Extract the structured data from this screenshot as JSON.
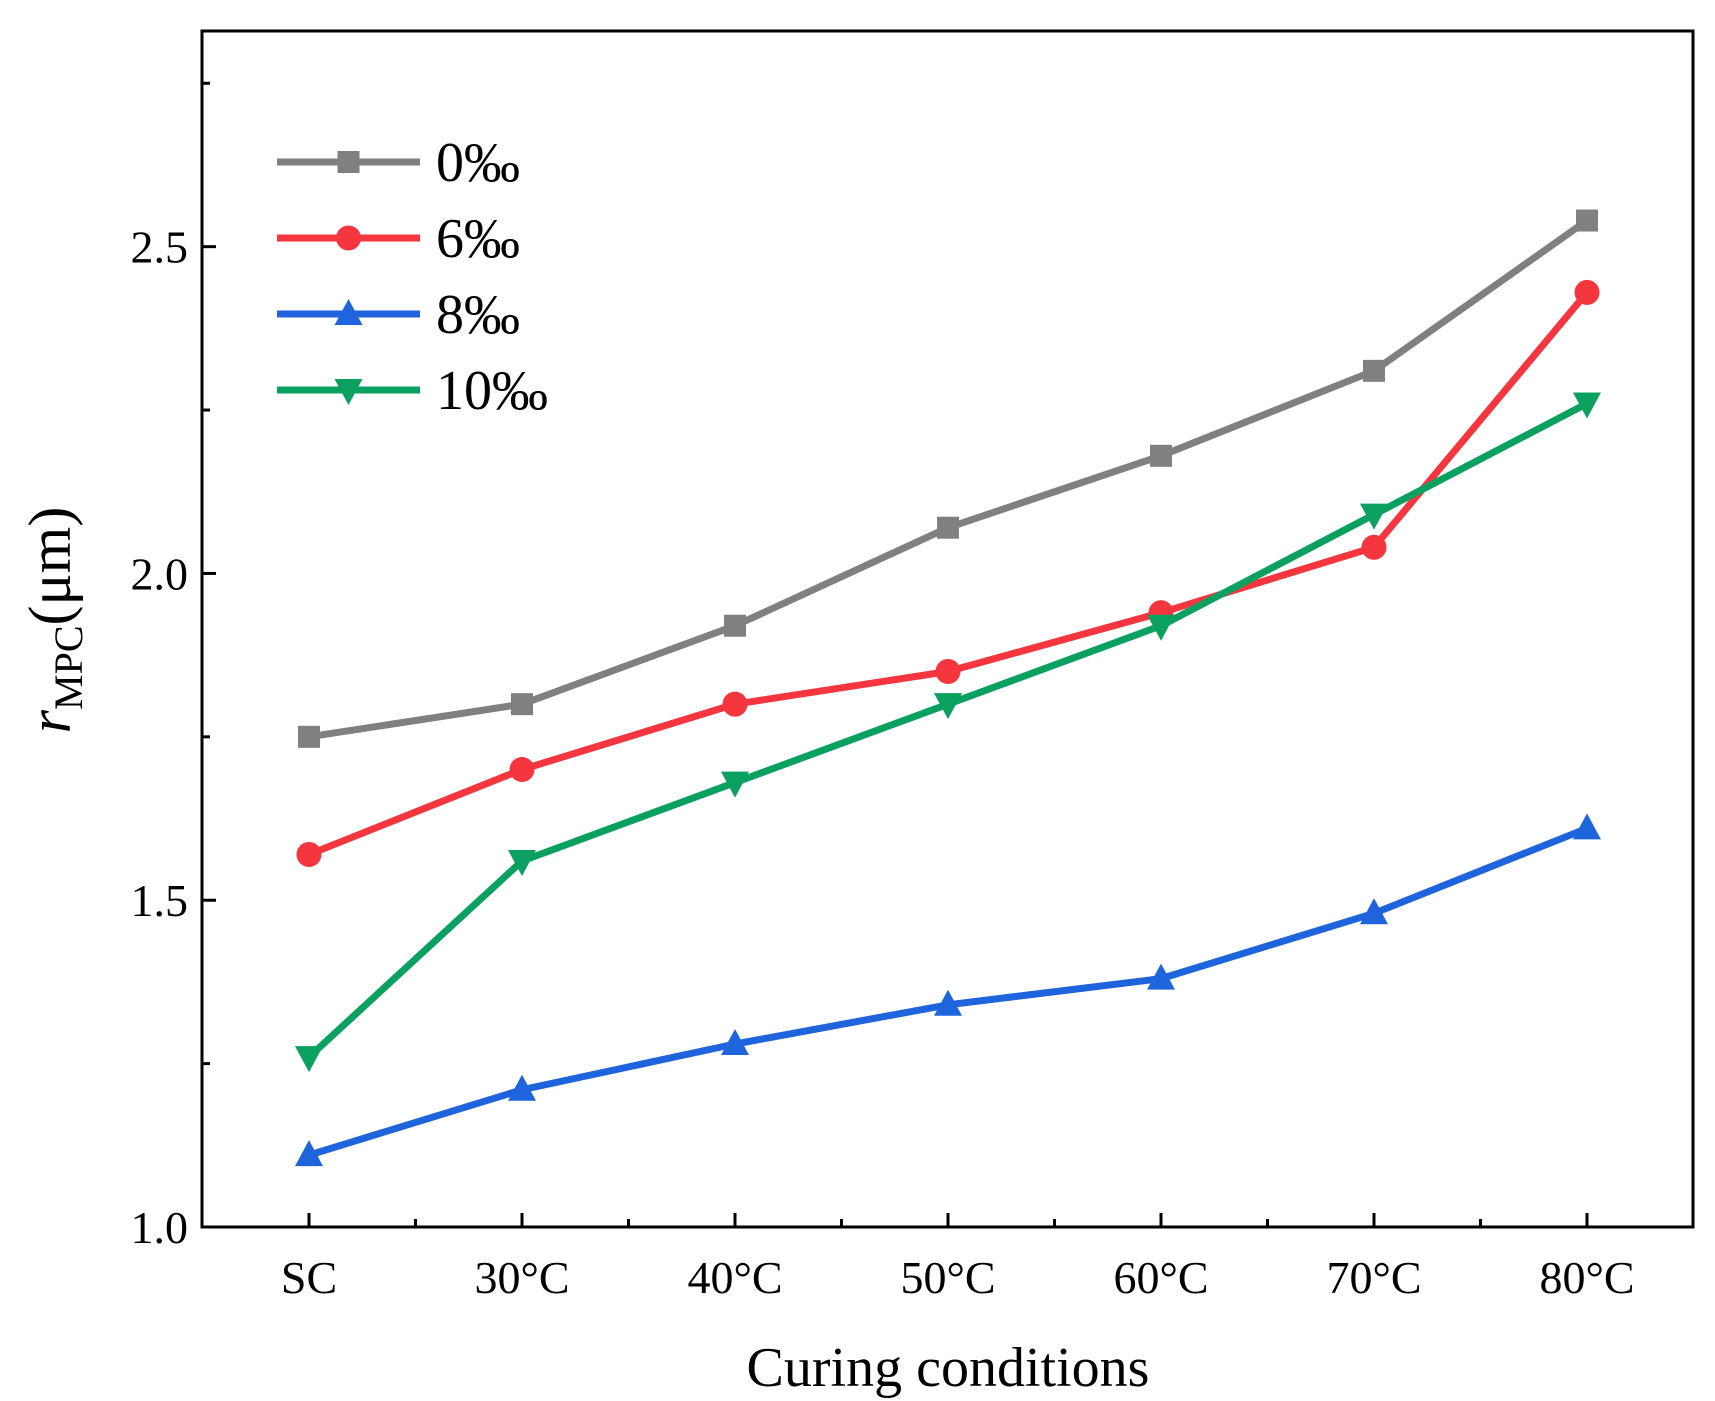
{
  "chart_data": {
    "type": "line",
    "title": "",
    "xlabel": "Curing conditions",
    "ylabel": {
      "main": "r",
      "sub": "MPC",
      "unit": "(μm)"
    },
    "categories": [
      "SC",
      "30°C",
      "40°C",
      "50°C",
      "60°C",
      "70°C",
      "80°C"
    ],
    "ylim": [
      1.0,
      2.83
    ],
    "yticks": [
      1.0,
      1.5,
      2.0,
      2.5
    ],
    "ytick_labels": [
      "1.0",
      "1.5",
      "2.0",
      "2.5"
    ],
    "grid": false,
    "legend_position": "top-left",
    "series": [
      {
        "name": "0‰",
        "color": "#808080",
        "marker": "square",
        "values": [
          1.75,
          1.8,
          1.92,
          2.07,
          2.18,
          2.31,
          2.54
        ]
      },
      {
        "name": "6‰",
        "color": "#f5363e",
        "marker": "circle",
        "values": [
          1.57,
          1.7,
          1.8,
          1.85,
          1.94,
          2.04,
          2.43
        ]
      },
      {
        "name": "8‰",
        "color": "#1e64dc",
        "marker": "triangle-up",
        "values": [
          1.11,
          1.21,
          1.28,
          1.34,
          1.38,
          1.48,
          1.61
        ]
      },
      {
        "name": "10‰",
        "color": "#0aa060",
        "marker": "triangle-down",
        "values": [
          1.26,
          1.56,
          1.68,
          1.8,
          1.92,
          2.09,
          2.26
        ]
      }
    ]
  }
}
